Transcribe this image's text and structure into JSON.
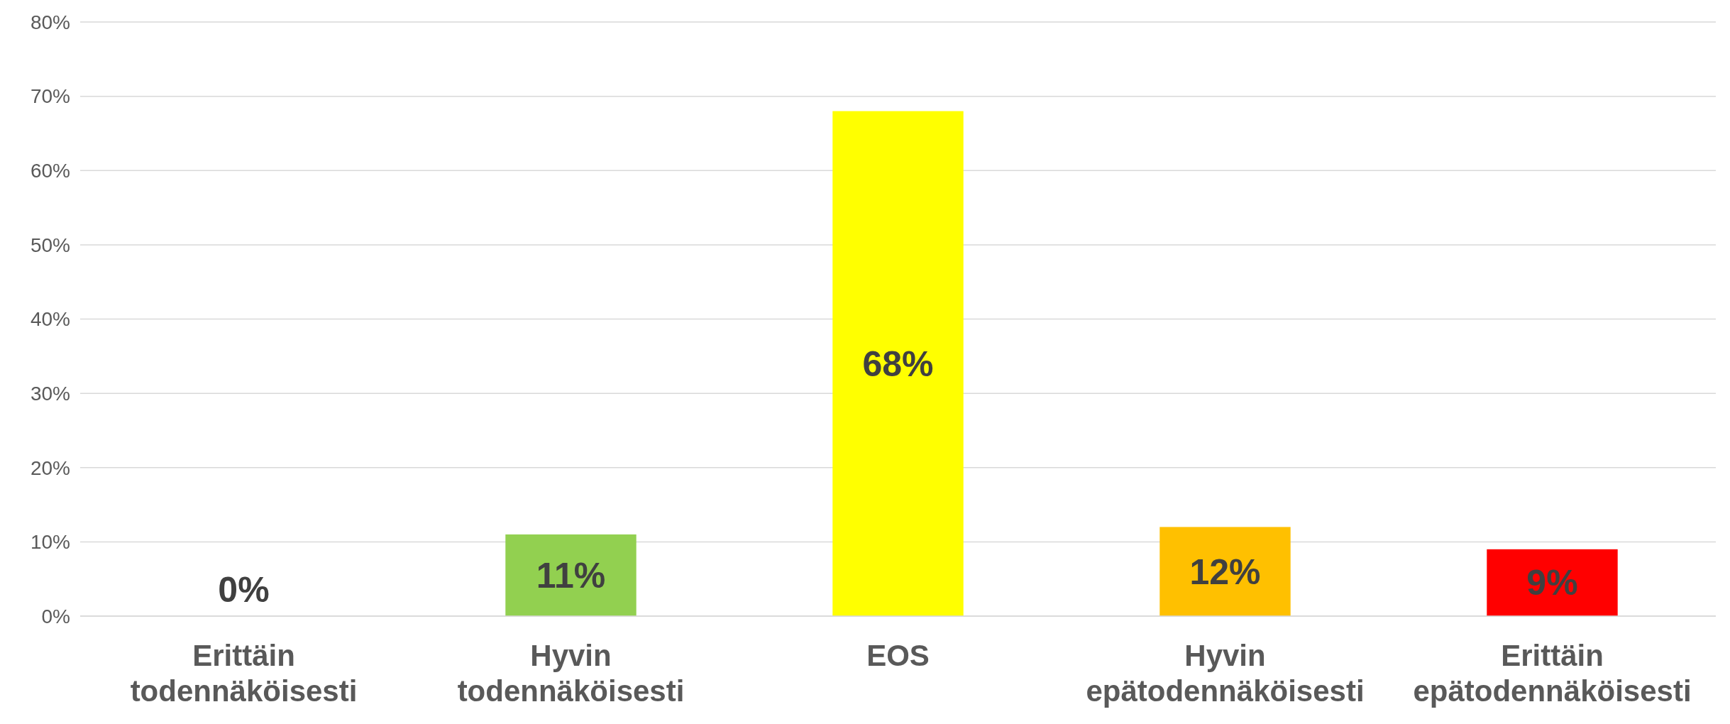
{
  "chart_data": {
    "type": "bar",
    "categories": [
      "Erittäin todennäköisesti",
      "Hyvin todennäköisesti",
      "EOS",
      "Hyvin epätodennäköisesti",
      "Erittäin epätodennäköisesti"
    ],
    "values": [
      0,
      11,
      68,
      12,
      9
    ],
    "colors": [
      "#92d050",
      "#92d050",
      "#ffff00",
      "#ffc000",
      "#ff0000"
    ],
    "value_labels": [
      "0%",
      "11%",
      "68%",
      "12%",
      "9%"
    ],
    "ylim": [
      0,
      80
    ],
    "yticks": [
      {
        "value": 0,
        "label": "0%"
      },
      {
        "value": 10,
        "label": "10%"
      },
      {
        "value": 20,
        "label": "20%"
      },
      {
        "value": 30,
        "label": "30%"
      },
      {
        "value": 40,
        "label": "40%"
      },
      {
        "value": 50,
        "label": "50%"
      },
      {
        "value": 60,
        "label": "60%"
      },
      {
        "value": 70,
        "label": "70%"
      },
      {
        "value": 80,
        "label": "80%"
      }
    ],
    "grid": true
  }
}
